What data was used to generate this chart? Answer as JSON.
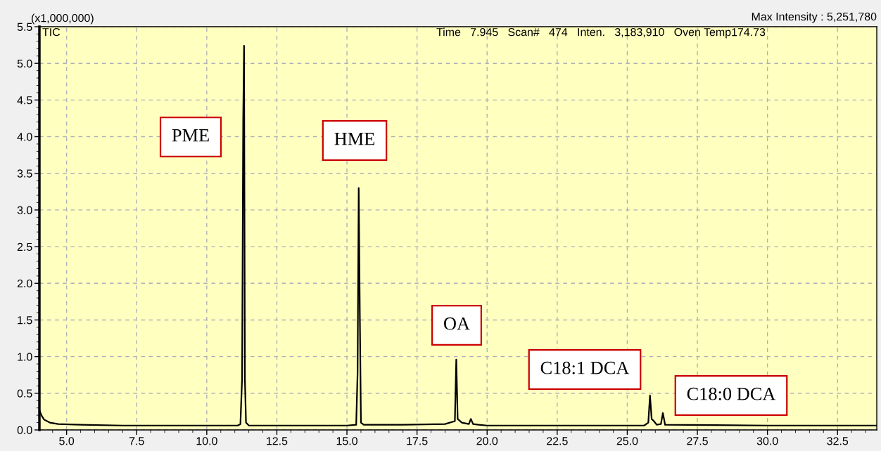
{
  "chart_data": {
    "type": "line",
    "x": [
      4.03,
      4.1,
      4.2,
      4.4,
      4.7,
      5.5,
      7,
      9,
      11.1,
      11.2,
      11.26,
      11.3,
      11.33,
      11.36,
      11.4,
      11.5,
      13,
      15,
      15.33,
      15.38,
      15.42,
      15.46,
      15.5,
      15.6,
      17,
      18.5,
      18.85,
      18.9,
      18.95,
      19.1,
      19.35,
      19.42,
      19.5,
      19.7,
      20,
      25.6,
      25.75,
      25.81,
      25.87,
      25.95,
      26.05,
      26.2,
      26.27,
      26.35,
      30,
      33.9
    ],
    "series": [
      {
        "color": "#000000",
        "values": [
          0.27,
          0.2,
          0.14,
          0.1,
          0.08,
          0.07,
          0.06,
          0.06,
          0.06,
          0.08,
          0.7,
          4.25,
          5.24,
          0.7,
          0.1,
          0.06,
          0.06,
          0.06,
          0.07,
          0.78,
          3.3,
          1.57,
          0.1,
          0.07,
          0.07,
          0.08,
          0.12,
          0.96,
          0.15,
          0.1,
          0.08,
          0.15,
          0.08,
          0.07,
          0.06,
          0.06,
          0.1,
          0.47,
          0.15,
          0.12,
          0.07,
          0.08,
          0.23,
          0.07,
          0.06,
          0.06
        ]
      }
    ],
    "xlim": [
      4.03,
      33.9
    ],
    "xticks": [
      {
        "value": 5,
        "label": "5.0"
      },
      {
        "value": 7.5,
        "label": "7.5"
      },
      {
        "value": 10,
        "label": "10.0"
      },
      {
        "value": 12.5,
        "label": "12.5"
      },
      {
        "value": 15,
        "label": "15.0"
      },
      {
        "value": 17.5,
        "label": "17.5"
      },
      {
        "value": 20,
        "label": "20.0"
      },
      {
        "value": 22.5,
        "label": "22.5"
      },
      {
        "value": 25,
        "label": "25.0"
      },
      {
        "value": 27.5,
        "label": "27.5"
      },
      {
        "value": 30,
        "label": "30.0"
      },
      {
        "value": 32.5,
        "label": "32.5"
      }
    ],
    "ylim": [
      0,
      5.5
    ],
    "yticks": [
      {
        "value": 0,
        "label": "0.0"
      },
      {
        "value": 0.5,
        "label": "0.5"
      },
      {
        "value": 1,
        "label": "1.0"
      },
      {
        "value": 1.5,
        "label": "1.5"
      },
      {
        "value": 2,
        "label": "2.0"
      },
      {
        "value": 2.5,
        "label": "2.5"
      },
      {
        "value": 3,
        "label": "3.0"
      },
      {
        "value": 3.5,
        "label": "3.5"
      },
      {
        "value": 4,
        "label": "4.0"
      },
      {
        "value": 4.5,
        "label": "4.5"
      },
      {
        "value": 5,
        "label": "5.0"
      },
      {
        "value": 5.5,
        "label": "5.5"
      }
    ],
    "grid": true,
    "marker": "none",
    "line_style": "solid",
    "annotations": [
      "(x1,000,000)",
      "Max Intensity : 5,251,780",
      "TIC",
      "Time   7.945   Scan#   474   Inten.   3,183,910   Oven Temp174.73",
      "PME",
      "HME",
      "OA",
      "C18:1 DCA",
      "C18:0 DCA"
    ]
  }
}
